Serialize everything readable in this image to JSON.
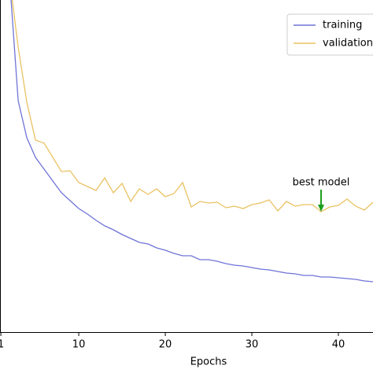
{
  "chart_data": {
    "type": "line",
    "x_label": "Epochs",
    "x": [
      2,
      3,
      4,
      5,
      6,
      7,
      8,
      9,
      10,
      11,
      12,
      13,
      14,
      15,
      16,
      17,
      18,
      19,
      20,
      21,
      22,
      23,
      24,
      25,
      26,
      27,
      28,
      29,
      30,
      31,
      32,
      33,
      34,
      35,
      36,
      37,
      38,
      39,
      40,
      41,
      42,
      43,
      44
    ],
    "series": [
      {
        "name": "training",
        "color": "#6f73d6",
        "values": [
          4.5,
          2.94,
          2.47,
          2.22,
          2.07,
          1.92,
          1.77,
          1.67,
          1.57,
          1.5,
          1.42,
          1.35,
          1.3,
          1.24,
          1.19,
          1.14,
          1.12,
          1.07,
          1.04,
          1.0,
          0.97,
          0.97,
          0.92,
          0.92,
          0.9,
          0.87,
          0.85,
          0.84,
          0.82,
          0.8,
          0.79,
          0.77,
          0.75,
          0.74,
          0.72,
          0.72,
          0.7,
          0.7,
          0.69,
          0.68,
          0.67,
          0.65,
          0.64
        ]
      },
      {
        "name": "validation",
        "color": "#e9c262",
        "values": [
          4.5,
          3.62,
          2.92,
          2.44,
          2.4,
          2.22,
          2.04,
          2.05,
          1.9,
          1.85,
          1.8,
          1.96,
          1.77,
          1.89,
          1.66,
          1.82,
          1.75,
          1.82,
          1.72,
          1.76,
          1.9,
          1.59,
          1.66,
          1.64,
          1.65,
          1.58,
          1.6,
          1.57,
          1.62,
          1.64,
          1.68,
          1.54,
          1.66,
          1.6,
          1.62,
          1.62,
          1.53,
          1.59,
          1.61,
          1.69,
          1.6,
          1.55,
          1.65
        ]
      }
    ],
    "xlim": [
      0.9,
      44
    ],
    "ylim": [
      0,
      4.22
    ],
    "xticks": [
      1,
      10,
      20,
      30,
      40
    ],
    "legend": "upper right",
    "annotation": {
      "text": "best model",
      "x": 38,
      "color": "#1a9e1a"
    }
  }
}
